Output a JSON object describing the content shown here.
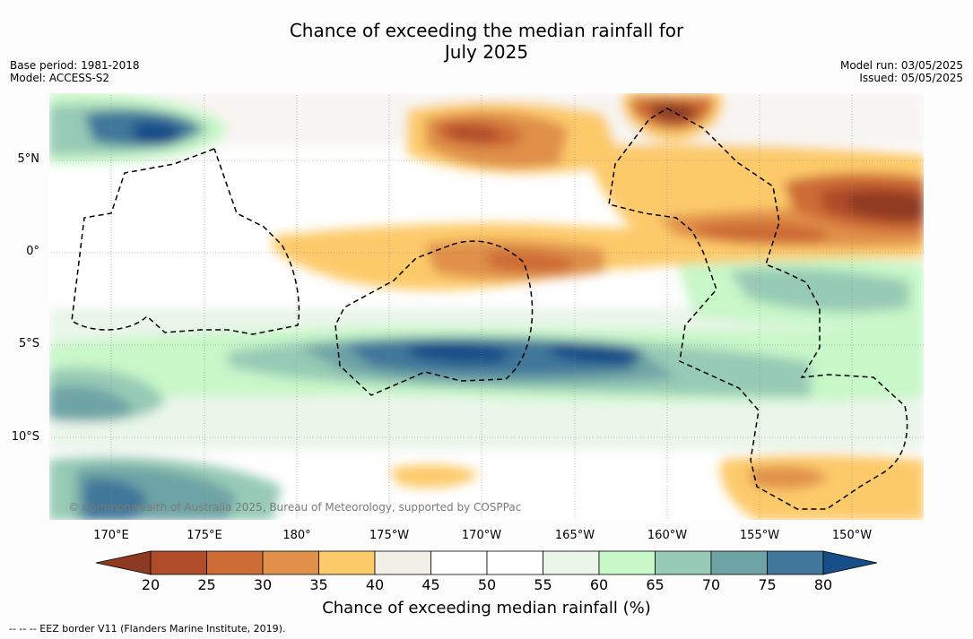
{
  "title_line1": "Chance of exceeding the median rainfall for",
  "title_line2": "July 2025",
  "meta_left": {
    "base_period": "Base period: 1981-2018",
    "model": "Model: ACCESS-S2"
  },
  "meta_right": {
    "model_run": "Model run: 03/05/2025",
    "issued": "Issued: 05/05/2025"
  },
  "copyright": "© Commonwealth of Australia 2025, Bureau of Meteorology, supported by COSPPac",
  "lat_labels": [
    "5°N",
    "0°",
    "5°S",
    "10°S"
  ],
  "lon_labels": [
    "170°E",
    "175°E",
    "180°",
    "175°W",
    "170°W",
    "165°W",
    "160°W",
    "155°W",
    "150°W"
  ],
  "colorbar": {
    "ticks": [
      "20",
      "25",
      "30",
      "35",
      "40",
      "45",
      "50",
      "55",
      "60",
      "65",
      "70",
      "75",
      "80"
    ],
    "label": "Chance of exceeding median rainfall (%)",
    "colors": [
      "#8e3a22",
      "#b04c2a",
      "#cd6c34",
      "#e0904a",
      "#fdca6a",
      "#f2eee8",
      "#ffffff",
      "#ffffff",
      "#eaf6ea",
      "#c8f7c8",
      "#97cbb5",
      "#6ea4a6",
      "#40779a",
      "#154e88"
    ]
  },
  "legend_note": "--  --  -- EEZ border V11 (Flanders Marine Institute, 2019)."
}
